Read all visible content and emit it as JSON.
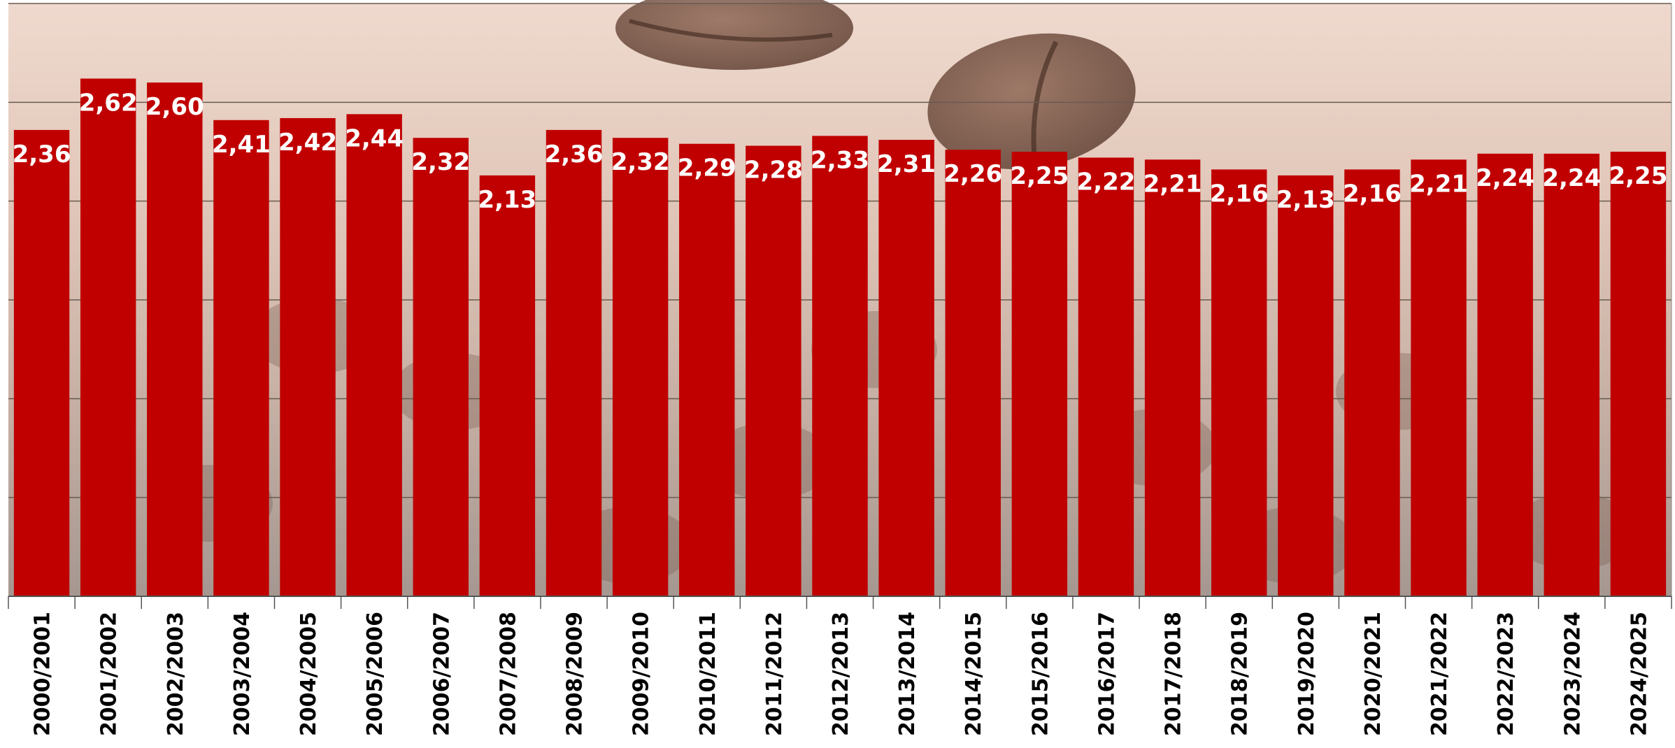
{
  "colors": {
    "bar": "#c00000",
    "label": "#ffffff",
    "tick_text": "#000000",
    "grid": "#6a5a50",
    "axis": "#555555",
    "background_top": "#ecd4c8",
    "background_mid": "#d8c0b4",
    "background_bottom": "#a89890",
    "bean": "#6b4a3a"
  },
  "chart_data": {
    "type": "bar",
    "title": "",
    "xlabel": "",
    "ylabel": "",
    "ylim": [
      0,
      3.0
    ],
    "grid": true,
    "legend": "none",
    "background": "coffee-beans-photo",
    "categories": [
      "2000/2001",
      "2001/2002",
      "2002/2003",
      "2003/2004",
      "2004/2005",
      "2005/2006",
      "2006/2007",
      "2007/2008",
      "2008/2009",
      "2009/2010",
      "2010/2011",
      "2011/2012",
      "2012/2013",
      "2013/2014",
      "2014/2015",
      "2015/2016",
      "2016/2017",
      "2017/2018",
      "2018/2019",
      "2019/2020",
      "2020/2021",
      "2021/2022",
      "2022/2023",
      "2023/2024",
      "2024/2025"
    ],
    "values": [
      2.36,
      2.62,
      2.6,
      2.41,
      2.42,
      2.44,
      2.32,
      2.13,
      2.36,
      2.32,
      2.29,
      2.28,
      2.33,
      2.31,
      2.26,
      2.25,
      2.22,
      2.21,
      2.16,
      2.13,
      2.16,
      2.21,
      2.24,
      2.24,
      2.25
    ],
    "data_labels": [
      "2,36",
      "2,62",
      "2,60",
      "2,41",
      "2,42",
      "2,44",
      "2,32",
      "2,13",
      "2,36",
      "2,32",
      "2,29",
      "2,28",
      "2,33",
      "2,31",
      "2,26",
      "2,25",
      "2,22",
      "2,21",
      "2,16",
      "2,13",
      "2,16",
      "2,21",
      "2,24",
      "2,24",
      "2,25"
    ]
  }
}
